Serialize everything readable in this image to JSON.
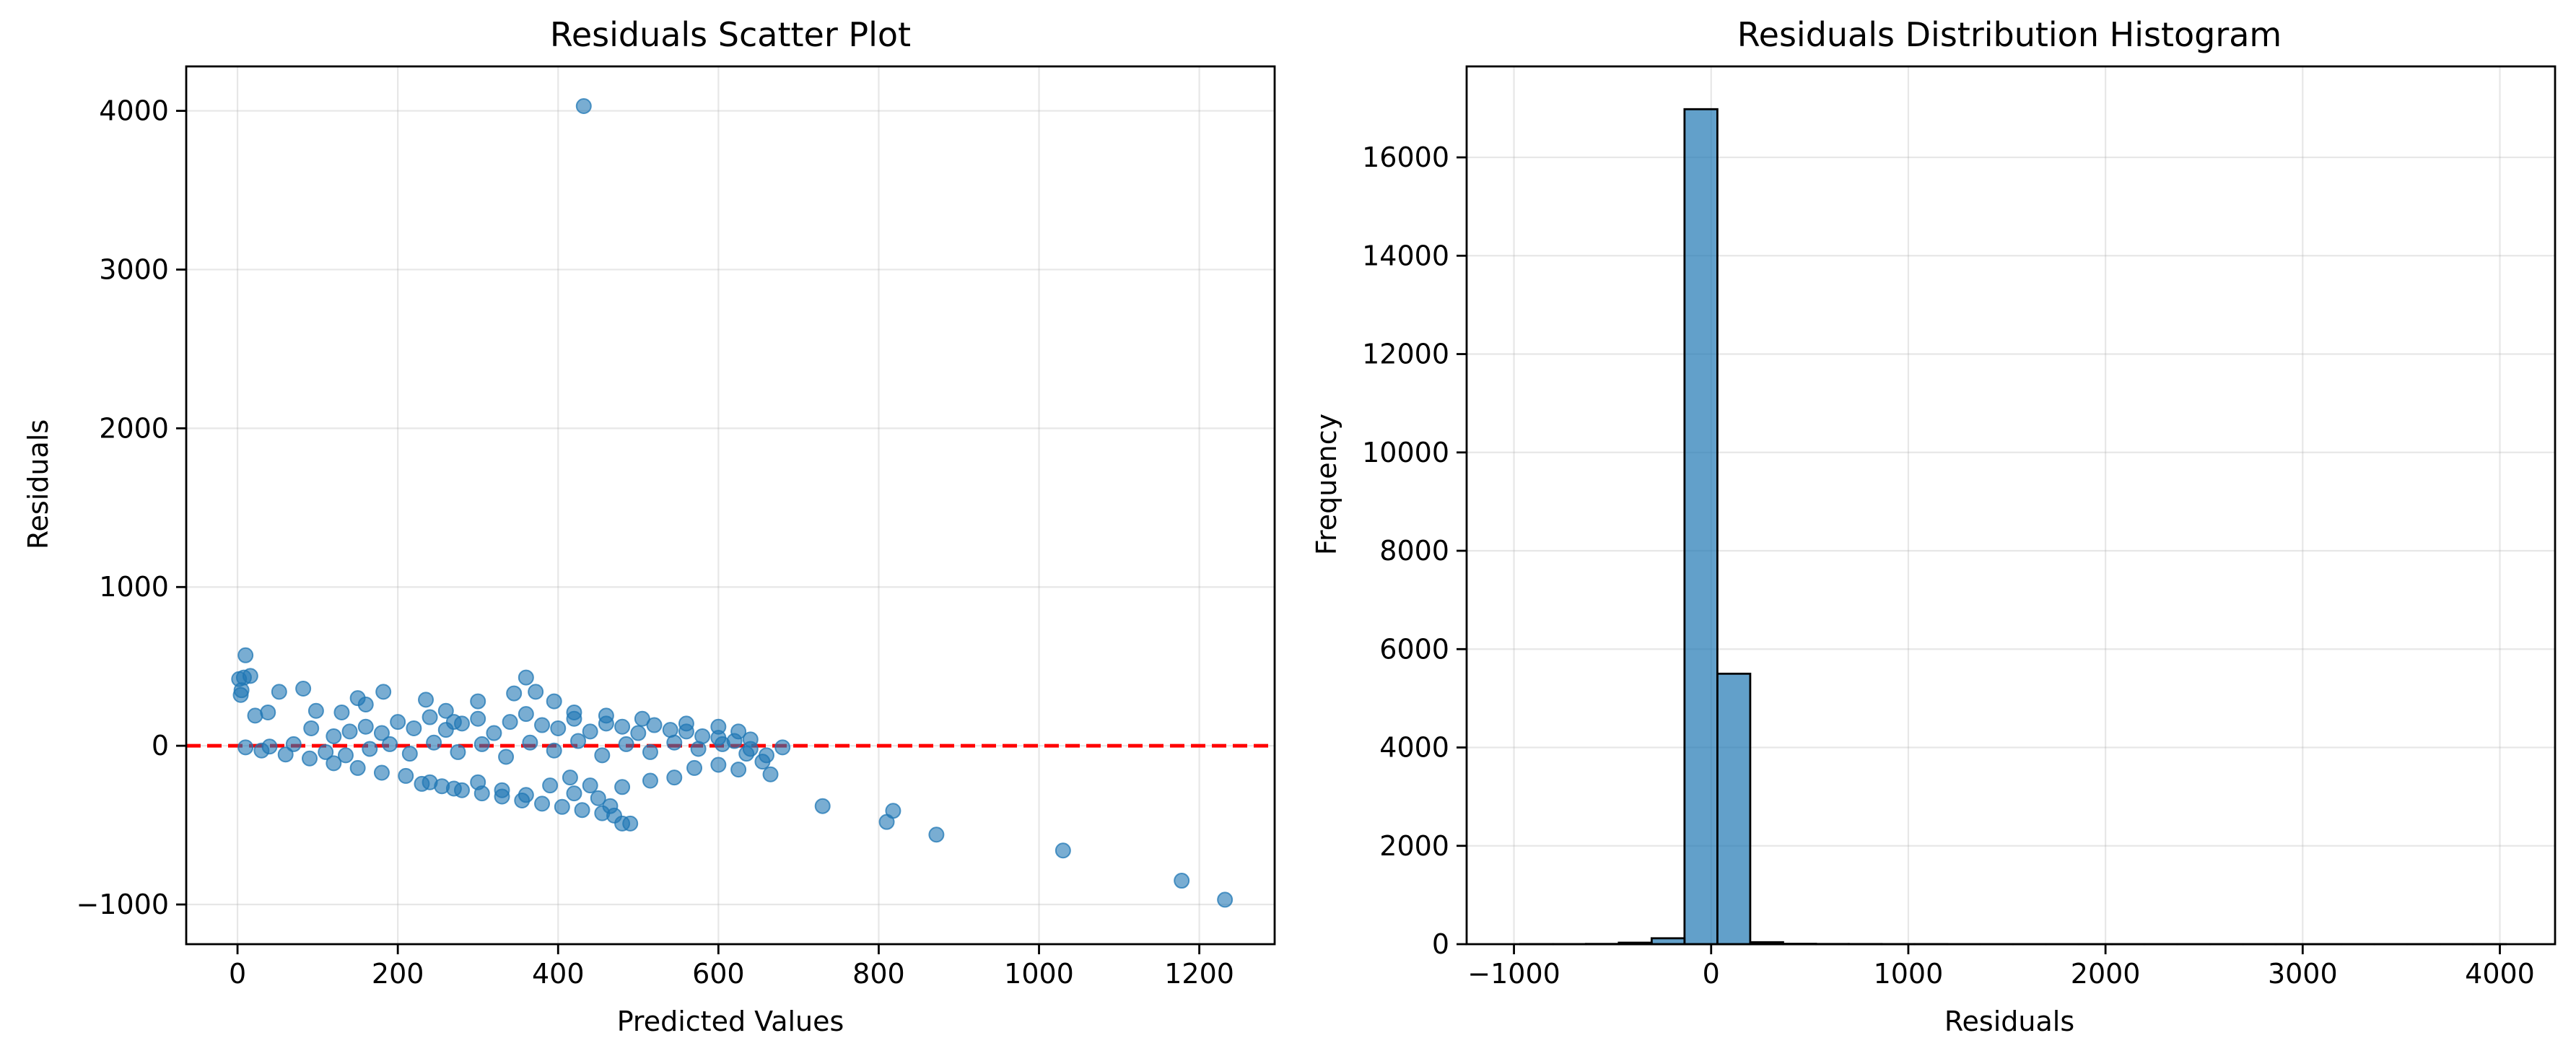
{
  "chart_data": [
    {
      "type": "scatter",
      "title": "Residuals Scatter Plot",
      "xlabel": "Predicted Values",
      "ylabel": "Residuals",
      "xlim": [
        -64,
        1294
      ],
      "ylim": [
        -1250,
        4280
      ],
      "xticks": [
        0,
        200,
        400,
        600,
        800,
        1000,
        1200
      ],
      "yticks": [
        -1000,
        0,
        1000,
        2000,
        3000,
        4000
      ],
      "xtick_labels": [
        "0",
        "200",
        "400",
        "600",
        "800",
        "1000",
        "1200"
      ],
      "ytick_labels": [
        "−1000",
        "0",
        "1000",
        "2000",
        "3000",
        "4000"
      ],
      "grid": true,
      "point_color": "#1f77b4",
      "reference_line": {
        "y": 0,
        "color": "#ff0000",
        "style": "dashed"
      },
      "points": [
        [
          432,
          4030
        ],
        [
          2,
          420
        ],
        [
          4,
          320
        ],
        [
          5,
          350
        ],
        [
          8,
          430
        ],
        [
          10,
          570
        ],
        [
          16,
          440
        ],
        [
          22,
          190
        ],
        [
          38,
          210
        ],
        [
          52,
          340
        ],
        [
          82,
          360
        ],
        [
          92,
          110
        ],
        [
          98,
          220
        ],
        [
          130,
          210
        ],
        [
          150,
          300
        ],
        [
          160,
          260
        ],
        [
          182,
          340
        ],
        [
          235,
          290
        ],
        [
          260,
          220
        ],
        [
          270,
          150
        ],
        [
          300,
          280
        ],
        [
          345,
          330
        ],
        [
          360,
          430
        ],
        [
          372,
          340
        ],
        [
          395,
          280
        ],
        [
          420,
          210
        ],
        [
          460,
          190
        ],
        [
          505,
          170
        ],
        [
          560,
          140
        ],
        [
          600,
          120
        ],
        [
          625,
          90
        ],
        [
          640,
          40
        ],
        [
          120,
          60
        ],
        [
          140,
          90
        ],
        [
          160,
          120
        ],
        [
          180,
          80
        ],
        [
          200,
          150
        ],
        [
          220,
          110
        ],
        [
          240,
          180
        ],
        [
          260,
          100
        ],
        [
          280,
          140
        ],
        [
          300,
          170
        ],
        [
          320,
          80
        ],
        [
          340,
          150
        ],
        [
          360,
          200
        ],
        [
          380,
          130
        ],
        [
          400,
          110
        ],
        [
          420,
          170
        ],
        [
          440,
          90
        ],
        [
          460,
          140
        ],
        [
          480,
          120
        ],
        [
          500,
          80
        ],
        [
          520,
          130
        ],
        [
          540,
          100
        ],
        [
          560,
          90
        ],
        [
          580,
          60
        ],
        [
          600,
          50
        ],
        [
          620,
          30
        ],
        [
          640,
          -20
        ],
        [
          660,
          -60
        ],
        [
          680,
          -10
        ],
        [
          655,
          -100
        ],
        [
          665,
          -180
        ],
        [
          625,
          -150
        ],
        [
          600,
          -120
        ],
        [
          570,
          -140
        ],
        [
          545,
          -200
        ],
        [
          515,
          -220
        ],
        [
          480,
          -260
        ],
        [
          450,
          -330
        ],
        [
          420,
          -300
        ],
        [
          390,
          -250
        ],
        [
          360,
          -310
        ],
        [
          330,
          -280
        ],
        [
          300,
          -230
        ],
        [
          270,
          -270
        ],
        [
          240,
          -230
        ],
        [
          210,
          -190
        ],
        [
          180,
          -170
        ],
        [
          150,
          -140
        ],
        [
          120,
          -110
        ],
        [
          90,
          -80
        ],
        [
          60,
          -55
        ],
        [
          30,
          -30
        ],
        [
          10,
          -10
        ],
        [
          40,
          -5
        ],
        [
          70,
          10
        ],
        [
          110,
          -40
        ],
        [
          135,
          -60
        ],
        [
          165,
          -20
        ],
        [
          190,
          10
        ],
        [
          215,
          -50
        ],
        [
          245,
          20
        ],
        [
          275,
          -40
        ],
        [
          305,
          10
        ],
        [
          335,
          -70
        ],
        [
          365,
          20
        ],
        [
          395,
          -30
        ],
        [
          425,
          30
        ],
        [
          455,
          -60
        ],
        [
          485,
          10
        ],
        [
          515,
          -40
        ],
        [
          545,
          20
        ],
        [
          575,
          -20
        ],
        [
          605,
          10
        ],
        [
          635,
          -50
        ],
        [
          230,
          -240
        ],
        [
          255,
          -255
        ],
        [
          280,
          -280
        ],
        [
          305,
          -300
        ],
        [
          330,
          -320
        ],
        [
          355,
          -345
        ],
        [
          380,
          -365
        ],
        [
          405,
          -385
        ],
        [
          430,
          -405
        ],
        [
          455,
          -425
        ],
        [
          470,
          -440
        ],
        [
          480,
          -490
        ],
        [
          490,
          -490
        ],
        [
          465,
          -380
        ],
        [
          440,
          -250
        ],
        [
          415,
          -200
        ],
        [
          730,
          -380
        ],
        [
          810,
          -480
        ],
        [
          818,
          -410
        ],
        [
          872,
          -560
        ],
        [
          1030,
          -660
        ],
        [
          1178,
          -850
        ],
        [
          1232,
          -970
        ]
      ]
    },
    {
      "type": "bar",
      "subtype": "histogram",
      "title": "Residuals Distribution Histogram",
      "xlabel": "Residuals",
      "ylabel": "Frequency",
      "xlim": [
        -1240,
        4280
      ],
      "ylim": [
        0,
        17850
      ],
      "xticks": [
        -1000,
        0,
        1000,
        2000,
        3000,
        4000
      ],
      "yticks": [
        0,
        2000,
        4000,
        6000,
        8000,
        10000,
        12000,
        14000,
        16000
      ],
      "xtick_labels": [
        "−1000",
        "0",
        "1000",
        "2000",
        "3000",
        "4000"
      ],
      "ytick_labels": [
        "0",
        "2000",
        "4000",
        "6000",
        "8000",
        "10000",
        "12000",
        "14000",
        "16000"
      ],
      "grid": true,
      "bar_color": "#1f77b4",
      "bin_start": -968,
      "bin_width": 166.6,
      "counts": [
        2,
        2,
        5,
        30,
        120,
        16980,
        5500,
        40,
        8,
        4,
        3,
        2,
        2,
        1,
        1,
        1,
        1,
        1,
        1,
        1,
        1,
        1,
        1,
        1,
        1,
        1,
        1,
        1,
        1,
        1
      ]
    }
  ]
}
